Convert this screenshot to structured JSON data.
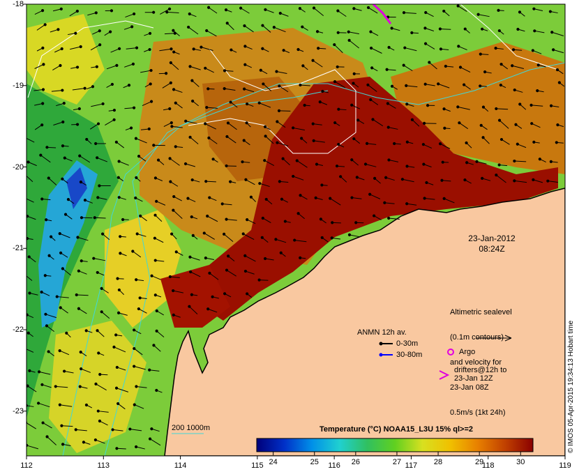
{
  "map": {
    "lon_ticks": [
      "112",
      "113",
      "114",
      "115",
      "116",
      "117",
      "118",
      "119"
    ],
    "lat_ticks": [
      "-18",
      "-19",
      "-20",
      "-21",
      "-22",
      "-23"
    ],
    "lon_range": [
      112,
      119
    ],
    "lat_range": [
      -23.55,
      -18
    ],
    "colors": {
      "land": "#f9c8a0",
      "hot": "#9c0a00",
      "warm": "#c8700a",
      "mid": "#e0c020",
      "green": "#3db13a",
      "cool": "#22a0d0",
      "cold": "#1040c0",
      "contour_cyan": "#40d8d8",
      "contour_white": "#ffffff"
    }
  },
  "timestamp": {
    "date": "23-Jan-2012",
    "time": "08:24Z"
  },
  "legend": {
    "altimetry_lines": [
      "Altimetric sealevel",
      "(0.1m contours)",
      "and velocity for",
      "23-Jan 08Z",
      "0.5m/s (1kt 24h)"
    ],
    "anmn_title": "ANMN 12h av.",
    "anmn_shallow": "0-30m",
    "anmn_deep": "30-80m",
    "anmn_shallow_color": "#000000",
    "anmn_deep_color": "#0000ff",
    "argo_label": "Argo",
    "argo_color": "#e000e0",
    "drifter_line1": "drifters@12h to",
    "drifter_line2": "23-Jan 12Z",
    "drifter_color": "#e000e0",
    "contour_key": "200  1000m"
  },
  "colorbar": {
    "title": "Temperature (°C) NOAA15_L3U 15% ql>=2",
    "ticks": [
      "24",
      "25",
      "26",
      "27",
      "28",
      "29",
      "30"
    ],
    "range": [
      23.6,
      30.3
    ],
    "stops": [
      "#00007a",
      "#0030c8",
      "#0090e8",
      "#20d0d0",
      "#30c060",
      "#60d020",
      "#d8e020",
      "#f0c000",
      "#e88000",
      "#c04000",
      "#8a0000"
    ]
  },
  "credit": "© IMOS 05-Apr-2015 19:34:13 Hobart time"
}
